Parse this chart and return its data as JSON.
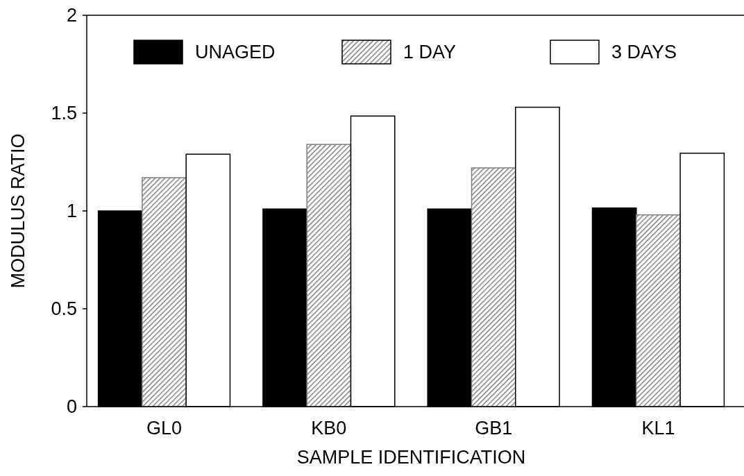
{
  "chart_data": {
    "type": "bar",
    "xlabel": "SAMPLE IDENTIFICATION",
    "ylabel": "MODULUS RATIO",
    "categories": [
      "GL0",
      "KB0",
      "GB1",
      "KL1"
    ],
    "series": [
      {
        "name": "UNAGED",
        "color": "#000000",
        "values": [
          1.0,
          1.01,
          1.01,
          1.015
        ]
      },
      {
        "name": "1 DAY",
        "color": "#7f7f7f",
        "values": [
          1.17,
          1.34,
          1.22,
          0.98
        ]
      },
      {
        "name": "3 DAYS",
        "color": "#ffffff",
        "values": [
          1.29,
          1.485,
          1.53,
          1.295
        ]
      }
    ],
    "ylim": [
      0,
      2
    ],
    "yticks": [
      0,
      0.5,
      1,
      1.5,
      2
    ],
    "legend": "top",
    "grid": false
  }
}
